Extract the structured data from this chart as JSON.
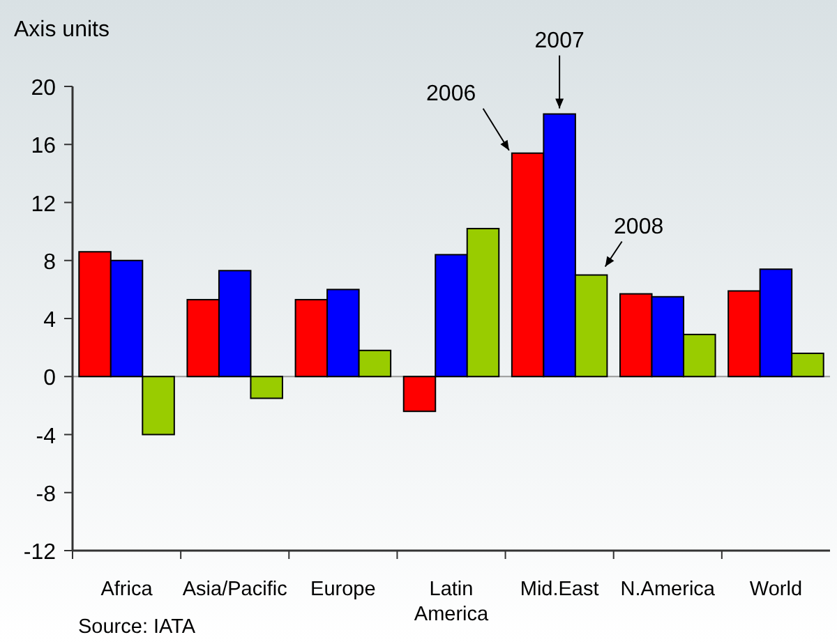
{
  "chart_data": {
    "type": "bar",
    "ylabel": "Axis units",
    "categories": [
      "Africa",
      "Asia/Pacific",
      "Europe",
      "Latin America",
      "Mid.East",
      "N.America",
      "World"
    ],
    "series": [
      {
        "name": "2006",
        "color": "#ff0000",
        "values": [
          8.6,
          5.3,
          5.3,
          -2.4,
          15.4,
          5.7,
          5.9
        ]
      },
      {
        "name": "2007",
        "color": "#0000ff",
        "values": [
          8.0,
          7.3,
          6.0,
          8.4,
          18.1,
          5.5,
          7.4
        ]
      },
      {
        "name": "2008",
        "color": "#99cc00",
        "values": [
          -4.0,
          -1.5,
          1.8,
          10.2,
          7.0,
          2.9,
          1.6
        ]
      }
    ],
    "ylim": [
      -12,
      20
    ],
    "yticks": [
      -12,
      -8,
      -4,
      0,
      4,
      8,
      12,
      16,
      20
    ],
    "annotations": [
      "Source: IATA"
    ]
  }
}
